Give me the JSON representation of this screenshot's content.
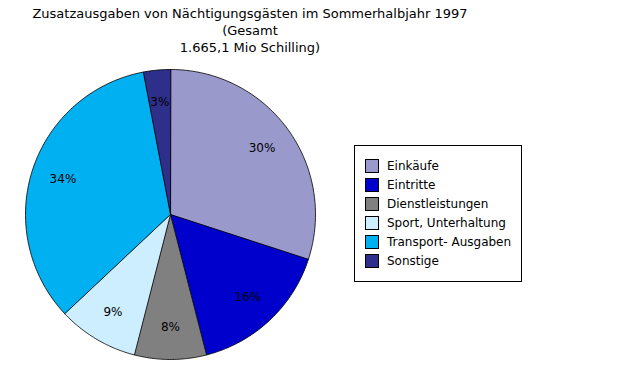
{
  "chart_data": {
    "type": "pie",
    "title": "Zusatzausgaben von Nächtigungsgästen im Sommerhalbjahr 1997 (Gesamt\n1.665,1 Mio Schilling)",
    "categories": [
      "Einkäufe",
      "Eintritte",
      "Dienstleistungen",
      "Sport, Unterhaltung",
      "Transport- Ausgaben",
      "Sonstige"
    ],
    "values": [
      30,
      16,
      8,
      9,
      34,
      3
    ],
    "value_labels": [
      "30%",
      "16%",
      "8%",
      "9%",
      "34%",
      "3%"
    ],
    "colors": [
      "#9999cc",
      "#0000cd",
      "#808080",
      "#cceeff",
      "#00b0f0",
      "#2e2e8b"
    ],
    "data_labels": true,
    "legend": "right"
  }
}
